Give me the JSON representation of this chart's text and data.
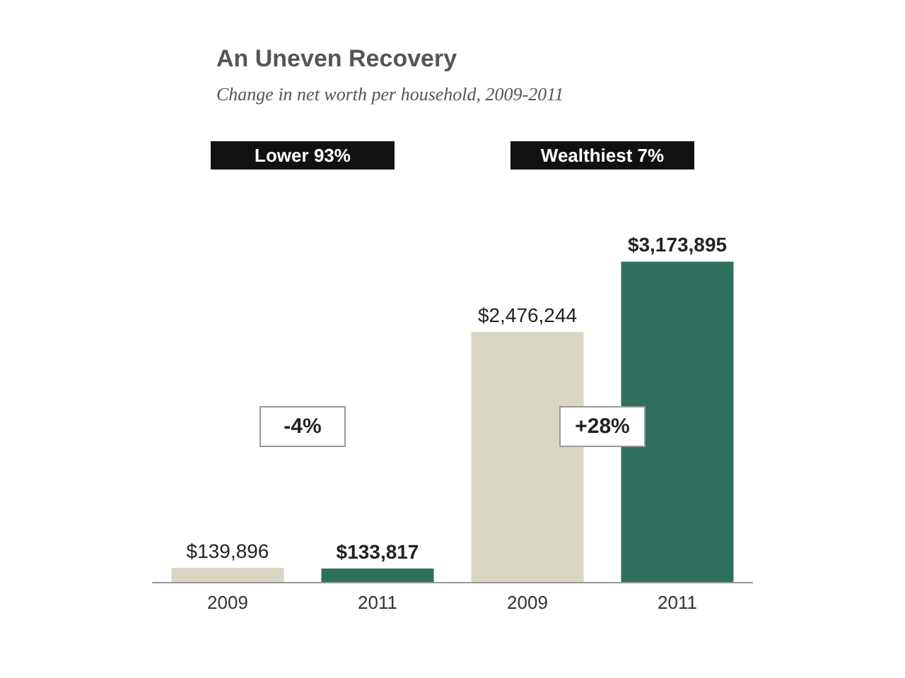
{
  "chart_data": {
    "type": "bar",
    "title": "An Uneven Recovery",
    "subtitle": "Change in net worth per household, 2009-2011",
    "categories": [
      "2009",
      "2011",
      "2009",
      "2011"
    ],
    "values": [
      139896,
      133817,
      2476244,
      3173895
    ],
    "colors": [
      "#d9d6c4",
      "#2f6f5e",
      "#d9d6c4",
      "#2f6f5e"
    ],
    "value_labels": [
      "$139,896",
      "$133,817",
      "$2,476,244",
      "$3,173,895"
    ],
    "annotations": [
      "Lower 93%",
      "Wealthiest 7%",
      "-4%",
      "+28%"
    ]
  }
}
